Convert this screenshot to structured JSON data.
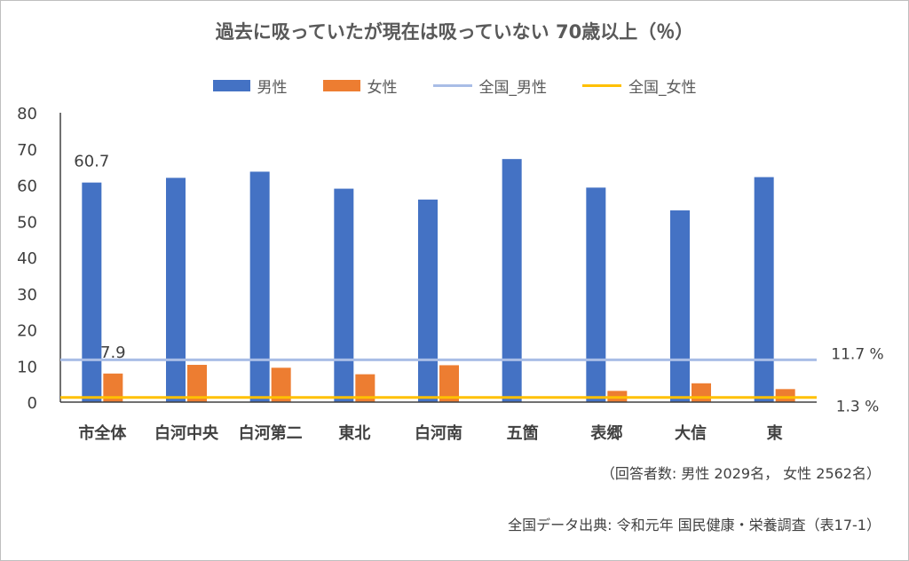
{
  "chart_data": {
    "type": "bar",
    "title": "過去に吸っていたが現在は吸っていない 70歳以上（％）",
    "categories": [
      "市全体",
      "白河中央",
      "白河第二",
      "東北",
      "白河南",
      "五箇",
      "表郷",
      "大信",
      "東"
    ],
    "series": [
      {
        "name": "男性",
        "color": "#4472c4",
        "values": [
          60.7,
          62.0,
          63.7,
          59.0,
          56.0,
          67.2,
          59.3,
          53.0,
          62.2
        ]
      },
      {
        "name": "女性",
        "color": "#ed7d31",
        "values": [
          7.9,
          10.3,
          9.5,
          7.7,
          10.2,
          0,
          3.1,
          5.2,
          3.6
        ]
      }
    ],
    "reference_lines": [
      {
        "name": "全国_男性",
        "value": 11.7,
        "label": "11.7 %",
        "color": "#a9bde6"
      },
      {
        "name": "全国_女性",
        "value": 1.3,
        "label": "1.3 %",
        "color": "#ffc000"
      }
    ],
    "data_labels": [
      {
        "series": 0,
        "index": 0,
        "text": "60.7"
      },
      {
        "series": 1,
        "index": 0,
        "text": "7.9"
      }
    ],
    "ylim": [
      0,
      80
    ],
    "yticks": [
      0,
      10,
      20,
      30,
      40,
      50,
      60,
      70,
      80
    ],
    "grid": false,
    "legend_position": "top"
  },
  "notes": {
    "respondents": "（回答者数: 男性 2029名， 女性 2562名）",
    "source": "全国データ出典: 令和元年 国民健康・栄養調査（表17-1）"
  }
}
